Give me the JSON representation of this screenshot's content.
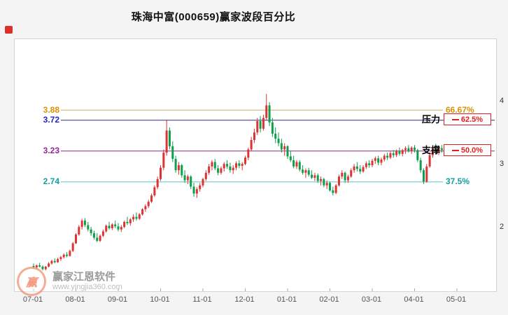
{
  "title": "珠海中富(000659)赢家波段百分比",
  "watermark": {
    "brand": "赢家江恩软件",
    "url": "www.yingjia360.com",
    "logo_char": "赢"
  },
  "chart_data": {
    "type": "candlestick",
    "title": "珠海中富(000659)赢家波段百分比",
    "months": [
      "07-01",
      "08-01",
      "09-01",
      "10-01",
      "11-01",
      "12-01",
      "01-01",
      "02-01",
      "03-01",
      "04-01",
      "05-01"
    ],
    "candles_per_month": 14,
    "ylim": [
      1.0,
      5.0
    ],
    "y_ticks": [
      {
        "label": "4",
        "value": 4
      },
      {
        "label": "3",
        "value": 3
      },
      {
        "label": "2",
        "value": 2
      }
    ],
    "up_color": "#DD3333",
    "down_color": "#0F9E4C",
    "levels": [
      {
        "price_label": "3.88",
        "value": 3.88,
        "percent": "66.67%",
        "style": "plain",
        "line_color": "#D8AE5E",
        "text_color": "#DE9000"
      },
      {
        "price_label": "3.72",
        "value": 3.72,
        "percent": "62.5%",
        "style": "boxed",
        "tag": "压力",
        "line_color": "#2E2E8E",
        "text_color": "#2525CC",
        "box_color": "#E02020"
      },
      {
        "price_label": "3.23",
        "value": 3.23,
        "percent": "50.0%",
        "style": "boxed",
        "tag": "支撑",
        "line_color": "#8A2E8E",
        "text_color": "#93279B",
        "box_color": "#E02020"
      },
      {
        "price_label": "2.74",
        "value": 2.74,
        "percent": "37.5%",
        "style": "plain",
        "line_color": "#53C3C7",
        "text_color": "#12A0A4"
      }
    ],
    "candles": [
      [
        1.4,
        1.44,
        1.36,
        1.38
      ],
      [
        1.38,
        1.42,
        1.35,
        1.41
      ],
      [
        1.41,
        1.45,
        1.38,
        1.39
      ],
      [
        1.39,
        1.41,
        1.33,
        1.35
      ],
      [
        1.35,
        1.4,
        1.33,
        1.39
      ],
      [
        1.39,
        1.46,
        1.38,
        1.44
      ],
      [
        1.44,
        1.5,
        1.42,
        1.48
      ],
      [
        1.48,
        1.52,
        1.44,
        1.46
      ],
      [
        1.46,
        1.53,
        1.45,
        1.51
      ],
      [
        1.51,
        1.56,
        1.48,
        1.54
      ],
      [
        1.54,
        1.6,
        1.52,
        1.58
      ],
      [
        1.58,
        1.62,
        1.54,
        1.56
      ],
      [
        1.56,
        1.66,
        1.55,
        1.64
      ],
      [
        1.64,
        1.78,
        1.62,
        1.76
      ],
      [
        1.76,
        1.92,
        1.75,
        1.9
      ],
      [
        1.9,
        2.05,
        1.88,
        2.02
      ],
      [
        2.02,
        2.15,
        1.98,
        2.12
      ],
      [
        2.12,
        2.16,
        2.02,
        2.05
      ],
      [
        2.05,
        2.1,
        1.95,
        1.98
      ],
      [
        1.98,
        2.02,
        1.88,
        1.92
      ],
      [
        1.92,
        1.96,
        1.82,
        1.85
      ],
      [
        1.85,
        1.92,
        1.78,
        1.8
      ],
      [
        1.8,
        1.9,
        1.78,
        1.88
      ],
      [
        1.88,
        1.98,
        1.86,
        1.95
      ],
      [
        1.95,
        2.06,
        1.93,
        2.04
      ],
      [
        2.04,
        2.1,
        1.98,
        2.0
      ],
      [
        2.0,
        2.08,
        1.97,
        2.06
      ],
      [
        2.06,
        2.12,
        2.0,
        2.03
      ],
      [
        2.03,
        2.08,
        1.95,
        1.98
      ],
      [
        1.98,
        2.05,
        1.94,
        2.02
      ],
      [
        2.02,
        2.12,
        2.0,
        2.1
      ],
      [
        2.1,
        2.18,
        2.05,
        2.08
      ],
      [
        2.08,
        2.16,
        2.04,
        2.14
      ],
      [
        2.14,
        2.22,
        2.1,
        2.18
      ],
      [
        2.18,
        2.25,
        2.12,
        2.15
      ],
      [
        2.15,
        2.24,
        2.13,
        2.22
      ],
      [
        2.22,
        2.32,
        2.2,
        2.3
      ],
      [
        2.3,
        2.38,
        2.26,
        2.35
      ],
      [
        2.35,
        2.45,
        2.32,
        2.42
      ],
      [
        2.42,
        2.55,
        2.4,
        2.52
      ],
      [
        2.52,
        2.68,
        2.5,
        2.65
      ],
      [
        2.65,
        2.82,
        2.62,
        2.78
      ],
      [
        2.78,
        3.0,
        2.75,
        2.96
      ],
      [
        2.96,
        3.25,
        2.92,
        3.2
      ],
      [
        3.2,
        3.72,
        3.15,
        3.55
      ],
      [
        3.55,
        3.6,
        3.25,
        3.3
      ],
      [
        3.3,
        3.38,
        3.05,
        3.1
      ],
      [
        3.1,
        3.15,
        2.88,
        2.92
      ],
      [
        2.92,
        3.05,
        2.85,
        3.0
      ],
      [
        3.0,
        3.02,
        2.8,
        2.84
      ],
      [
        2.84,
        2.92,
        2.72,
        2.76
      ],
      [
        2.76,
        2.85,
        2.7,
        2.82
      ],
      [
        2.82,
        2.84,
        2.62,
        2.66
      ],
      [
        2.66,
        2.72,
        2.5,
        2.55
      ],
      [
        2.55,
        2.65,
        2.48,
        2.62
      ],
      [
        2.62,
        2.72,
        2.58,
        2.68
      ],
      [
        2.68,
        2.8,
        2.65,
        2.78
      ],
      [
        2.78,
        2.92,
        2.75,
        2.88
      ],
      [
        2.88,
        3.02,
        2.85,
        2.98
      ],
      [
        2.98,
        3.08,
        2.92,
        3.05
      ],
      [
        3.05,
        3.1,
        2.92,
        2.95
      ],
      [
        2.95,
        3.0,
        2.84,
        2.88
      ],
      [
        2.88,
        2.98,
        2.85,
        2.95
      ],
      [
        2.95,
        3.05,
        2.9,
        3.02
      ],
      [
        3.02,
        3.08,
        2.94,
        2.98
      ],
      [
        2.98,
        3.04,
        2.88,
        2.92
      ],
      [
        2.92,
        3.0,
        2.86,
        2.96
      ],
      [
        2.96,
        3.06,
        2.92,
        3.03
      ],
      [
        3.03,
        3.08,
        2.95,
        2.99
      ],
      [
        2.99,
        3.05,
        2.92,
        3.02
      ],
      [
        3.02,
        3.15,
        3.0,
        3.12
      ],
      [
        3.12,
        3.28,
        3.08,
        3.25
      ],
      [
        3.25,
        3.45,
        3.22,
        3.4
      ],
      [
        3.4,
        3.58,
        3.35,
        3.52
      ],
      [
        3.52,
        3.75,
        3.48,
        3.7
      ],
      [
        3.7,
        3.78,
        3.52,
        3.58
      ],
      [
        3.58,
        3.8,
        3.55,
        3.75
      ],
      [
        3.75,
        4.13,
        3.72,
        3.95
      ],
      [
        3.95,
        4.0,
        3.62,
        3.68
      ],
      [
        3.68,
        3.75,
        3.45,
        3.5
      ],
      [
        3.5,
        3.6,
        3.35,
        3.42
      ],
      [
        3.42,
        3.52,
        3.3,
        3.35
      ],
      [
        3.35,
        3.42,
        3.2,
        3.25
      ],
      [
        3.25,
        3.35,
        3.15,
        3.3
      ],
      [
        3.3,
        3.32,
        3.1,
        3.14
      ],
      [
        3.14,
        3.22,
        3.05,
        3.08
      ],
      [
        3.08,
        3.15,
        2.95,
        2.98
      ],
      [
        2.98,
        3.08,
        2.94,
        3.05
      ],
      [
        3.05,
        3.08,
        2.9,
        2.93
      ],
      [
        2.93,
        3.0,
        2.85,
        2.88
      ],
      [
        2.88,
        2.95,
        2.8,
        2.92
      ],
      [
        2.92,
        2.96,
        2.82,
        2.85
      ],
      [
        2.85,
        2.92,
        2.78,
        2.8
      ],
      [
        2.8,
        2.88,
        2.75,
        2.84
      ],
      [
        2.84,
        2.87,
        2.72,
        2.75
      ],
      [
        2.75,
        2.82,
        2.68,
        2.78
      ],
      [
        2.78,
        2.8,
        2.65,
        2.68
      ],
      [
        2.68,
        2.76,
        2.62,
        2.72
      ],
      [
        2.72,
        2.74,
        2.58,
        2.6
      ],
      [
        2.6,
        2.66,
        2.52,
        2.56
      ],
      [
        2.56,
        2.7,
        2.54,
        2.68
      ],
      [
        2.68,
        2.85,
        2.66,
        2.82
      ],
      [
        2.82,
        2.92,
        2.78,
        2.88
      ],
      [
        2.88,
        2.9,
        2.72,
        2.76
      ],
      [
        2.76,
        2.85,
        2.72,
        2.82
      ],
      [
        2.82,
        2.95,
        2.8,
        2.92
      ],
      [
        2.92,
        3.02,
        2.88,
        2.98
      ],
      [
        2.98,
        3.05,
        2.9,
        2.94
      ],
      [
        2.94,
        3.0,
        2.86,
        2.9
      ],
      [
        2.9,
        3.0,
        2.88,
        2.97
      ],
      [
        2.97,
        3.06,
        2.94,
        3.03
      ],
      [
        3.03,
        3.08,
        2.96,
        3.0
      ],
      [
        3.0,
        3.1,
        2.97,
        3.07
      ],
      [
        3.07,
        3.14,
        3.02,
        3.11
      ],
      [
        3.11,
        3.15,
        3.0,
        3.04
      ],
      [
        3.04,
        3.12,
        3.0,
        3.09
      ],
      [
        3.09,
        3.18,
        3.06,
        3.15
      ],
      [
        3.15,
        3.2,
        3.08,
        3.12
      ],
      [
        3.12,
        3.22,
        3.1,
        3.19
      ],
      [
        3.19,
        3.24,
        3.12,
        3.16
      ],
      [
        3.16,
        3.25,
        3.13,
        3.22
      ],
      [
        3.22,
        3.28,
        3.15,
        3.18
      ],
      [
        3.18,
        3.26,
        3.14,
        3.24
      ],
      [
        3.24,
        3.3,
        3.18,
        3.27
      ],
      [
        3.27,
        3.32,
        3.2,
        3.23
      ],
      [
        3.23,
        3.3,
        3.18,
        3.28
      ],
      [
        3.28,
        3.32,
        3.2,
        3.24
      ],
      [
        3.24,
        3.26,
        3.05,
        3.08
      ],
      [
        3.08,
        3.12,
        2.88,
        2.92
      ],
      [
        2.92,
        2.95,
        2.7,
        2.74
      ],
      [
        2.74,
        3.02,
        2.72,
        2.98
      ],
      [
        2.98,
        3.2,
        2.96,
        3.16
      ],
      [
        3.16,
        3.3,
        3.12,
        3.26
      ],
      [
        3.26,
        3.34,
        3.18,
        3.22
      ],
      [
        3.22,
        3.3,
        3.16,
        3.27
      ],
      [
        3.27,
        3.32,
        3.2,
        3.24
      ]
    ]
  }
}
